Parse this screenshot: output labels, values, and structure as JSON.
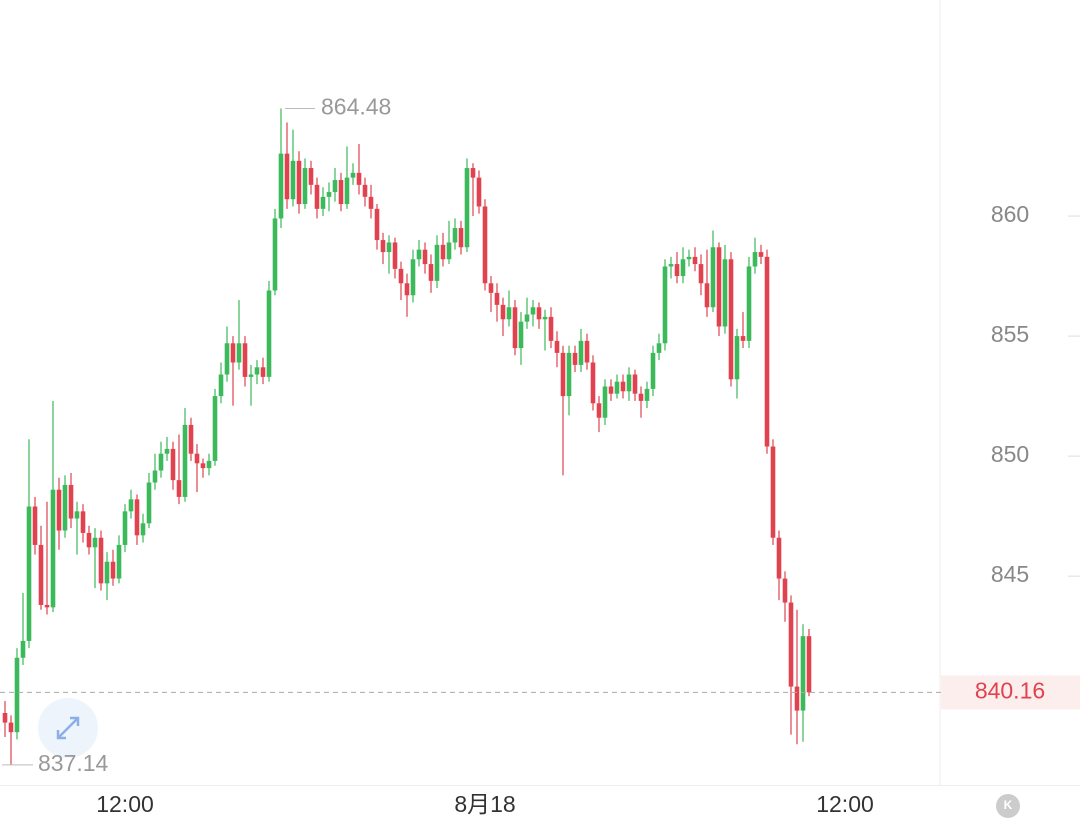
{
  "chart_data": {
    "type": "candlestick",
    "up_color": "#3cb95a",
    "down_color": "#e0434f",
    "ylim": [
      836.3,
      869
    ],
    "yticks": [
      845,
      850,
      855,
      860
    ],
    "corner_button": "K",
    "categories": [
      null,
      null,
      null,
      null,
      null,
      null,
      null,
      null,
      null,
      null,
      null,
      null,
      null,
      null,
      null,
      null,
      null,
      null,
      null,
      null,
      "12:00",
      null,
      null,
      null,
      null,
      null,
      null,
      null,
      null,
      null,
      null,
      null,
      null,
      null,
      null,
      null,
      null,
      null,
      null,
      null,
      null,
      null,
      null,
      null,
      null,
      null,
      null,
      null,
      null,
      null,
      null,
      null,
      null,
      null,
      null,
      null,
      null,
      null,
      null,
      null,
      null,
      null,
      null,
      null,
      null,
      null,
      null,
      null,
      null,
      null,
      null,
      null,
      null,
      null,
      null,
      null,
      null,
      null,
      null,
      null,
      "8月18",
      null,
      null,
      null,
      null,
      null,
      null,
      null,
      null,
      null,
      null,
      null,
      null,
      null,
      null,
      null,
      null,
      null,
      null,
      null,
      null,
      null,
      null,
      null,
      null,
      null,
      null,
      null,
      null,
      null,
      null,
      null,
      null,
      null,
      null,
      null,
      null,
      null,
      null,
      null,
      null,
      null,
      null,
      null,
      null,
      null,
      null,
      null,
      null,
      null,
      null,
      null,
      null,
      null,
      null,
      null,
      null,
      null,
      null,
      null,
      "12:00",
      null,
      null,
      null,
      null,
      null,
      null,
      null,
      null,
      null,
      null,
      null,
      null,
      null,
      null,
      null
    ],
    "open": [
      839.3,
      838.9,
      838.5,
      841.6,
      842.3,
      847.9,
      846.3,
      843.8,
      843.7,
      848.6,
      846.9,
      848.8,
      847.4,
      847.7,
      846.8,
      846.2,
      846.6,
      844.7,
      845.6,
      844.9,
      846.3,
      847.7,
      848.2,
      846.7,
      847.2,
      848.9,
      849.4,
      850.1,
      850.3,
      849.0,
      848.3,
      851.3,
      850.1,
      849.7,
      849.5,
      849.8,
      852.5,
      853.4,
      854.7,
      853.9,
      854.7,
      853.3,
      853.4,
      853.7,
      853.3,
      856.9,
      859.9,
      862.6,
      860.7,
      862.3,
      860.5,
      862.0,
      861.3,
      860.3,
      860.8,
      861.0,
      861.5,
      860.5,
      861.6,
      861.8,
      861.3,
      860.8,
      860.3,
      859.0,
      858.5,
      858.9,
      857.8,
      857.2,
      856.7,
      858.2,
      858.6,
      858.0,
      857.3,
      858.8,
      858.2,
      858.9,
      859.5,
      858.7,
      862.0,
      861.6,
      860.4,
      857.2,
      856.8,
      856.3,
      855.7,
      856.2,
      854.5,
      855.6,
      855.9,
      856.2,
      855.7,
      855.8,
      854.8,
      854.3,
      852.5,
      854.3,
      853.8,
      854.8,
      853.9,
      852.2,
      851.6,
      852.9,
      852.6,
      853.1,
      852.7,
      853.4,
      852.6,
      852.3,
      852.8,
      854.3,
      854.7,
      857.9,
      858.0,
      857.5,
      858.2,
      858.3,
      858.0,
      857.2,
      856.2,
      858.7,
      855.4,
      858.2,
      853.2,
      855.0,
      854.8,
      857.9,
      858.5,
      858.3,
      850.4,
      846.6,
      844.9,
      843.9,
      840.4,
      839.4,
      842.5,
      null,
      null,
      null,
      null,
      null,
      null,
      null,
      null,
      null,
      null,
      null,
      null,
      null,
      null,
      null,
      null,
      null,
      null,
      null,
      null,
      null
    ],
    "high": [
      839.8,
      839.2,
      842.0,
      844.3,
      850.7,
      848.3,
      847.1,
      848.1,
      852.3,
      849.1,
      849.2,
      849.3,
      848.1,
      848.0,
      847.1,
      847.0,
      846.9,
      846.0,
      846.1,
      846.7,
      848.0,
      848.6,
      848.4,
      847.6,
      849.3,
      850.1,
      850.6,
      850.8,
      850.6,
      850.9,
      852.0,
      851.6,
      850.5,
      849.9,
      850.1,
      852.8,
      853.9,
      855.4,
      855.0,
      856.5,
      855.0,
      853.8,
      854.0,
      854.1,
      857.3,
      860.3,
      864.48,
      863.9,
      863.6,
      862.7,
      862.4,
      862.3,
      861.6,
      861.2,
      861.4,
      862.0,
      861.8,
      862.9,
      862.2,
      863.0,
      861.6,
      861.3,
      860.5,
      859.3,
      859.2,
      859.1,
      858.1,
      857.6,
      858.6,
      859.0,
      858.9,
      858.4,
      859.2,
      859.3,
      859.8,
      859.9,
      859.8,
      862.4,
      862.2,
      861.9,
      860.7,
      857.5,
      857.2,
      856.6,
      856.9,
      856.5,
      856.0,
      856.6,
      856.5,
      856.4,
      856.1,
      856.2,
      855.2,
      854.6,
      854.6,
      854.6,
      855.3,
      855.1,
      854.2,
      852.5,
      853.2,
      853.2,
      853.4,
      853.4,
      853.7,
      853.6,
      852.9,
      853.1,
      854.6,
      855.1,
      858.2,
      858.3,
      858.5,
      858.7,
      858.6,
      858.7,
      858.4,
      858.6,
      859.4,
      858.9,
      858.8,
      858.5,
      855.3,
      856.0,
      858.3,
      859.1,
      858.8,
      858.6,
      850.7,
      846.9,
      845.2,
      844.2,
      843.6,
      843.0,
      842.8,
      null,
      null,
      null,
      null,
      null,
      null,
      null,
      null,
      null,
      null,
      null,
      null,
      null,
      null,
      null,
      null,
      null,
      null,
      null,
      null,
      null
    ],
    "low": [
      838.3,
      837.14,
      838.2,
      841.3,
      842.0,
      845.9,
      843.6,
      843.4,
      843.5,
      846.1,
      846.6,
      847.0,
      845.9,
      846.4,
      845.9,
      844.5,
      844.4,
      844.0,
      844.6,
      844.7,
      846.0,
      847.4,
      846.3,
      846.4,
      847.0,
      848.6,
      849.1,
      849.8,
      848.6,
      848.0,
      848.1,
      849.8,
      848.5,
      849.1,
      849.2,
      849.6,
      852.2,
      853.1,
      852.1,
      853.6,
      852.9,
      852.1,
      853.0,
      853.0,
      853.1,
      856.7,
      859.5,
      860.3,
      860.4,
      860.1,
      860.3,
      860.9,
      859.9,
      860.0,
      860.2,
      860.6,
      860.2,
      860.3,
      861.3,
      860.9,
      860.4,
      859.9,
      858.6,
      858.0,
      857.6,
      857.4,
      856.5,
      855.8,
      856.4,
      857.9,
      857.6,
      856.8,
      857.0,
      857.9,
      858.0,
      858.6,
      858.4,
      858.5,
      860.0,
      860.1,
      856.9,
      856.0,
      855.6,
      855.0,
      855.4,
      854.2,
      853.8,
      855.3,
      855.4,
      855.3,
      854.4,
      854.5,
      853.7,
      849.2,
      851.7,
      853.5,
      853.5,
      853.6,
      851.9,
      851.0,
      851.3,
      852.3,
      852.4,
      852.4,
      852.3,
      852.3,
      851.6,
      852.0,
      852.5,
      854.0,
      854.4,
      857.4,
      857.2,
      857.2,
      857.9,
      857.7,
      856.7,
      855.8,
      856.0,
      855.0,
      855.1,
      852.9,
      852.4,
      854.5,
      854.5,
      857.6,
      858.0,
      850.1,
      846.3,
      844.0,
      843.1,
      838.4,
      838.0,
      838.1,
      840.0,
      null,
      null,
      null,
      null,
      null,
      null,
      null,
      null,
      null,
      null,
      null,
      null,
      null,
      null,
      null,
      null,
      null,
      null,
      null,
      null,
      null
    ],
    "close": [
      838.9,
      838.5,
      841.6,
      842.3,
      847.9,
      846.3,
      843.8,
      843.7,
      848.6,
      846.9,
      848.8,
      847.4,
      847.7,
      846.8,
      846.2,
      846.6,
      844.7,
      845.6,
      844.9,
      846.3,
      847.7,
      848.2,
      846.7,
      847.2,
      848.9,
      849.4,
      850.1,
      850.3,
      849.0,
      848.3,
      851.3,
      850.1,
      849.7,
      849.5,
      849.8,
      852.5,
      853.4,
      854.7,
      853.9,
      854.7,
      853.3,
      853.4,
      853.7,
      853.3,
      856.9,
      859.9,
      862.6,
      860.7,
      862.3,
      860.5,
      862.0,
      861.3,
      860.3,
      860.8,
      861.0,
      861.5,
      860.5,
      861.6,
      861.8,
      861.3,
      860.8,
      860.3,
      859.0,
      858.5,
      858.9,
      857.8,
      857.2,
      856.7,
      858.2,
      858.6,
      858.0,
      857.3,
      858.8,
      858.2,
      858.9,
      859.5,
      858.7,
      862.0,
      861.6,
      860.4,
      857.2,
      856.8,
      856.3,
      855.7,
      856.2,
      854.5,
      855.6,
      855.9,
      856.2,
      855.7,
      855.8,
      854.8,
      854.3,
      852.5,
      854.3,
      853.8,
      854.8,
      853.9,
      852.2,
      851.6,
      852.9,
      852.6,
      853.1,
      852.7,
      853.4,
      852.6,
      852.3,
      852.8,
      854.3,
      854.7,
      857.9,
      858.0,
      857.5,
      858.2,
      858.3,
      858.0,
      857.2,
      856.2,
      858.7,
      855.4,
      858.2,
      853.2,
      855.0,
      854.8,
      857.9,
      858.5,
      858.3,
      850.4,
      846.6,
      844.9,
      843.9,
      840.4,
      839.4,
      842.5,
      840.16,
      null,
      null,
      null,
      null,
      null,
      null,
      null,
      null,
      null,
      null,
      null,
      null,
      null,
      null,
      null,
      null,
      null,
      null,
      null,
      null,
      null
    ]
  }
}
